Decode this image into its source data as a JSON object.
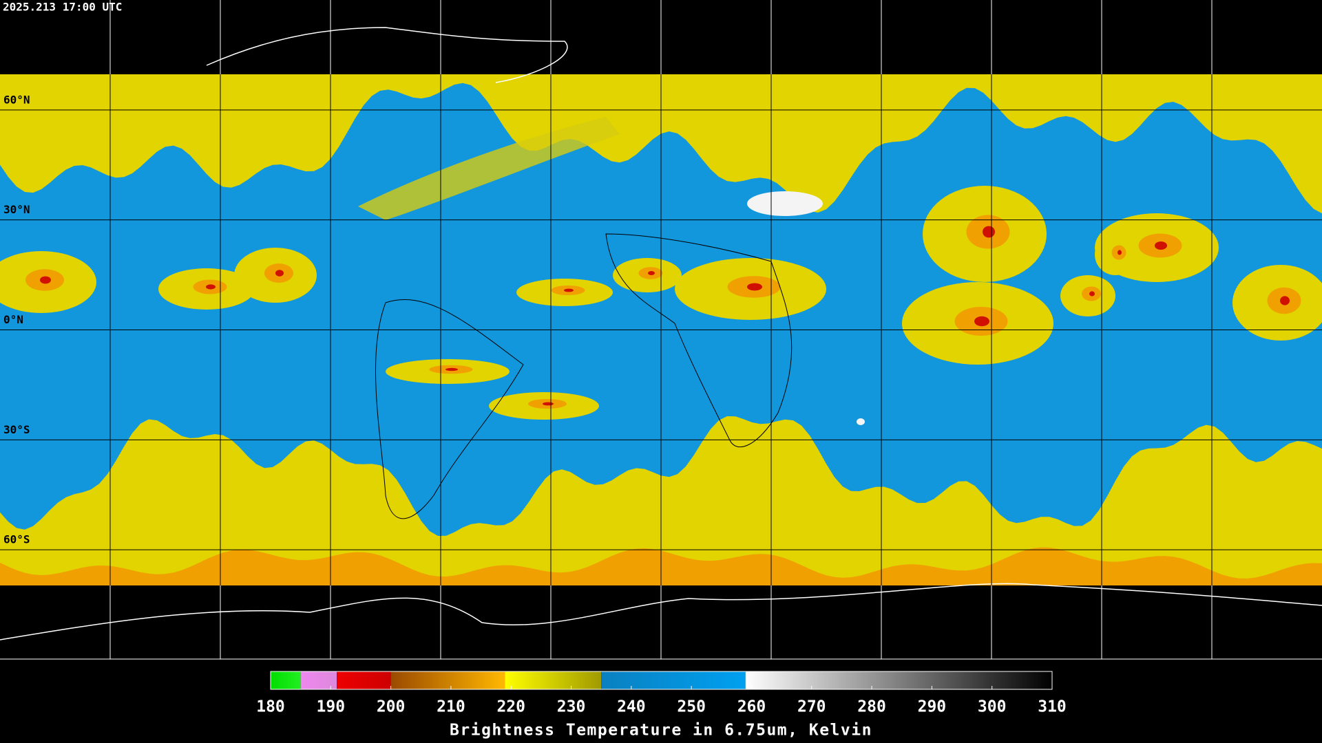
{
  "timestamp": "2025.213 17:00 UTC",
  "map": {
    "latitudes": [
      {
        "value": 60,
        "label": "60°N"
      },
      {
        "value": 30,
        "label": "30°N"
      },
      {
        "value": 0,
        "label": "0°N"
      },
      {
        "value": -30,
        "label": "30°S"
      },
      {
        "value": -60,
        "label": "60°S"
      }
    ]
  },
  "colorbar": {
    "title": "Brightness Temperature in 6.75um, Kelvin",
    "lim": [
      180,
      310
    ],
    "ticks": [
      180,
      190,
      200,
      210,
      220,
      230,
      240,
      250,
      260,
      270,
      280,
      290,
      300,
      310
    ],
    "segments": [
      {
        "from": 180,
        "to": 185,
        "color_start": "#00dd00",
        "color_end": "#22ee22"
      },
      {
        "from": 185,
        "to": 191,
        "color_start": "#ee88ee",
        "color_end": "#dd88dd"
      },
      {
        "from": 191,
        "to": 200,
        "color_start": "#ee0000",
        "color_end": "#cc0000"
      },
      {
        "from": 200,
        "to": 219,
        "color_start": "#9a4a00",
        "color_end": "#ffb800"
      },
      {
        "from": 219,
        "to": 235,
        "color_start": "#ffff00",
        "color_end": "#a09a00"
      },
      {
        "from": 235,
        "to": 259,
        "color_start": "#0a80c0",
        "color_end": "#00a0f0"
      },
      {
        "from": 259,
        "to": 310,
        "color_start": "#ffffff",
        "color_end": "#000000"
      }
    ]
  }
}
